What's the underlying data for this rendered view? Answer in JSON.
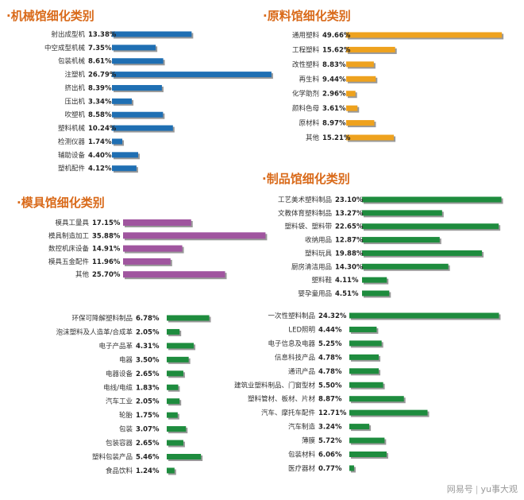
{
  "colors": {
    "title": "#d96a1a",
    "machinery": "#1f6fb3",
    "materials": "#eea21e",
    "products": "#1e8c3e",
    "molds": "#a0559f",
    "shadow": "#555555"
  },
  "titles": {
    "machinery": "·机械馆细化类别",
    "materials": "·原料馆细化类别",
    "products": "·制品馆细化类别",
    "molds": "·模具馆细化类别"
  },
  "watermark": {
    "brand": "网易号",
    "sep": "|",
    "author": "yu事大观"
  },
  "chart_data": [
    {
      "type": "bar",
      "orientation": "horizontal",
      "title": "·机械馆细化类别",
      "categories": [
        "射出成型机",
        "中空成型机械",
        "包装机械",
        "注塑机",
        "挤出机",
        "压出机",
        "吹塑机",
        "塑料机械",
        "检测仪器",
        "辅助设备",
        "塑机配件"
      ],
      "values": [
        13.38,
        7.35,
        8.61,
        26.79,
        8.39,
        3.34,
        8.58,
        10.24,
        1.74,
        4.4,
        4.12
      ],
      "labels": [
        "13.38%",
        "7.35%",
        "8.61%",
        "26.79%",
        "8.39%",
        "3.34%",
        "8.58%",
        "10.24%",
        "1.74%",
        "4.40%",
        "4.12%"
      ]
    },
    {
      "type": "bar",
      "orientation": "horizontal",
      "title": "·原料馆细化类别",
      "categories": [
        "通用塑料",
        "工程塑料",
        "改性塑料",
        "再生料",
        "化学助剂",
        "颜料色母",
        "原材料",
        "其他"
      ],
      "values": [
        49.66,
        15.62,
        8.83,
        9.44,
        2.96,
        3.61,
        8.97,
        15.21
      ],
      "labels": [
        "49.66%",
        "15.62%",
        "8.83%",
        "9.44%",
        "2.96%",
        "3.61%",
        "8.97%",
        "15.21%"
      ]
    },
    {
      "type": "bar",
      "orientation": "horizontal",
      "title": "·制品馆细化类别",
      "categories": [
        "工艺美术塑料制品",
        "文教体育塑料制品",
        "塑料袋、塑料带",
        "收纳用品",
        "塑料玩具",
        "厨房清洁用品",
        "塑料鞋",
        "婴孕童用品"
      ],
      "values": [
        23.1,
        13.27,
        22.65,
        12.87,
        19.88,
        14.3,
        4.11,
        4.51
      ],
      "labels": [
        "23.10%",
        "13.27%",
        "22.65%",
        "12.87%",
        "19.88%",
        "14.30%",
        "4.11%",
        "4.51%"
      ]
    },
    {
      "type": "bar",
      "orientation": "horizontal",
      "title": "·模具馆细化类别",
      "categories": [
        "模具工量具",
        "模具制造加工",
        "数控机床设备",
        "模具五金配件",
        "其他"
      ],
      "values": [
        17.15,
        35.88,
        14.91,
        11.96,
        25.7
      ],
      "labels": [
        "17.15%",
        "35.88%",
        "14.91%",
        "11.96%",
        "25.70%"
      ]
    },
    {
      "type": "bar",
      "orientation": "horizontal",
      "title": "",
      "categories": [
        "环保可降解塑料制品",
        "泡沫塑料及人造革/合成革",
        "电子产品革",
        "电器",
        "电器设备",
        "电线/电缆",
        "汽车工业",
        "轮胎",
        "包装",
        "包装容器",
        "塑料包装产品",
        "食品饮料"
      ],
      "values": [
        6.78,
        2.05,
        4.31,
        3.5,
        2.65,
        1.83,
        2.05,
        1.75,
        3.07,
        2.65,
        5.46,
        1.24
      ],
      "labels": [
        "6.78%",
        "2.05%",
        "4.31%",
        "3.50%",
        "2.65%",
        "1.83%",
        "2.05%",
        "1.75%",
        "3.07%",
        "2.65%",
        "5.46%",
        "1.24%"
      ]
    },
    {
      "type": "bar",
      "orientation": "horizontal",
      "title": "",
      "categories": [
        "一次性塑料制品",
        "LED照明",
        "电子信息及电器",
        "信息科技产品",
        "通讯产品",
        "建筑业塑料制品、门窗型材",
        "塑料管材、板材、片材",
        "汽车、摩托车配件",
        "汽车制造",
        "薄膜",
        "包装材料",
        "医疗器材"
      ],
      "values": [
        24.32,
        4.44,
        5.25,
        4.78,
        4.78,
        5.5,
        8.87,
        12.71,
        3.24,
        5.72,
        6.06,
        0.77
      ],
      "labels": [
        "24.32%",
        "4.44%",
        "5.25%",
        "4.78%",
        "4.78%",
        "5.50%",
        "8.87%",
        "12.71%",
        "3.24%",
        "5.72%",
        "6.06%",
        "0.77%"
      ]
    }
  ]
}
